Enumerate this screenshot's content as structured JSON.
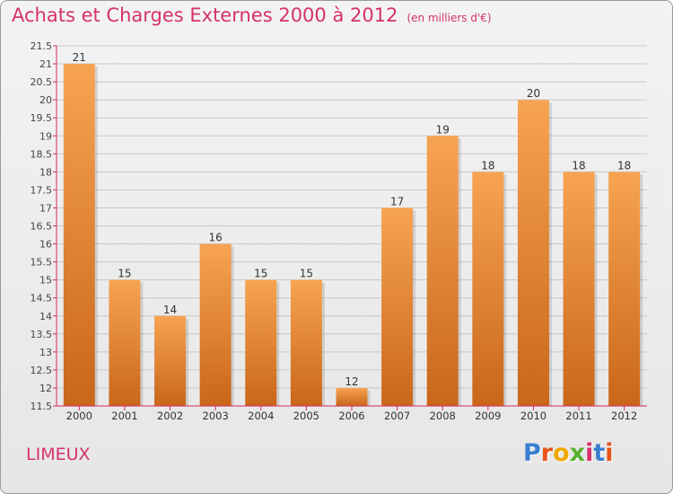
{
  "header": {
    "title": "Achats et Charges Externes 2000 à 2012",
    "unit": "(en milliers d'€)"
  },
  "footer": {
    "commune": "LIMEUX",
    "logo": "Proxiti",
    "logo_colors": [
      "#3a7fd0",
      "#e8541a",
      "#f0a800",
      "#58b030",
      "#d5316e",
      "#3a7fd0",
      "#e8541a"
    ]
  },
  "colors": {
    "title": "#d5316e",
    "bar_light": "#f7a452",
    "bar_dark": "#c9661a",
    "axis": "#d62a5e",
    "grid": "#c8c8c8"
  },
  "chart_data": {
    "type": "bar",
    "title": "Achats et Charges Externes 2000 à 2012",
    "subtitle": "(en milliers d'€)",
    "categories": [
      "2000",
      "2001",
      "2002",
      "2003",
      "2004",
      "2005",
      "2006",
      "2007",
      "2008",
      "2009",
      "2010",
      "2011",
      "2012"
    ],
    "values": [
      21,
      15,
      14,
      16,
      15,
      15,
      12,
      17,
      19,
      18,
      20,
      18,
      18
    ],
    "ylim": [
      11.5,
      21.5
    ],
    "yticks": [
      "11.5",
      "12",
      "12.5",
      "13",
      "13.5",
      "14",
      "14.5",
      "15",
      "15.5",
      "16",
      "16.5",
      "17",
      "17.5",
      "18",
      "18.5",
      "19",
      "19.5",
      "20",
      "20.5",
      "21",
      "21.5"
    ],
    "grid": true,
    "legend": "none"
  }
}
